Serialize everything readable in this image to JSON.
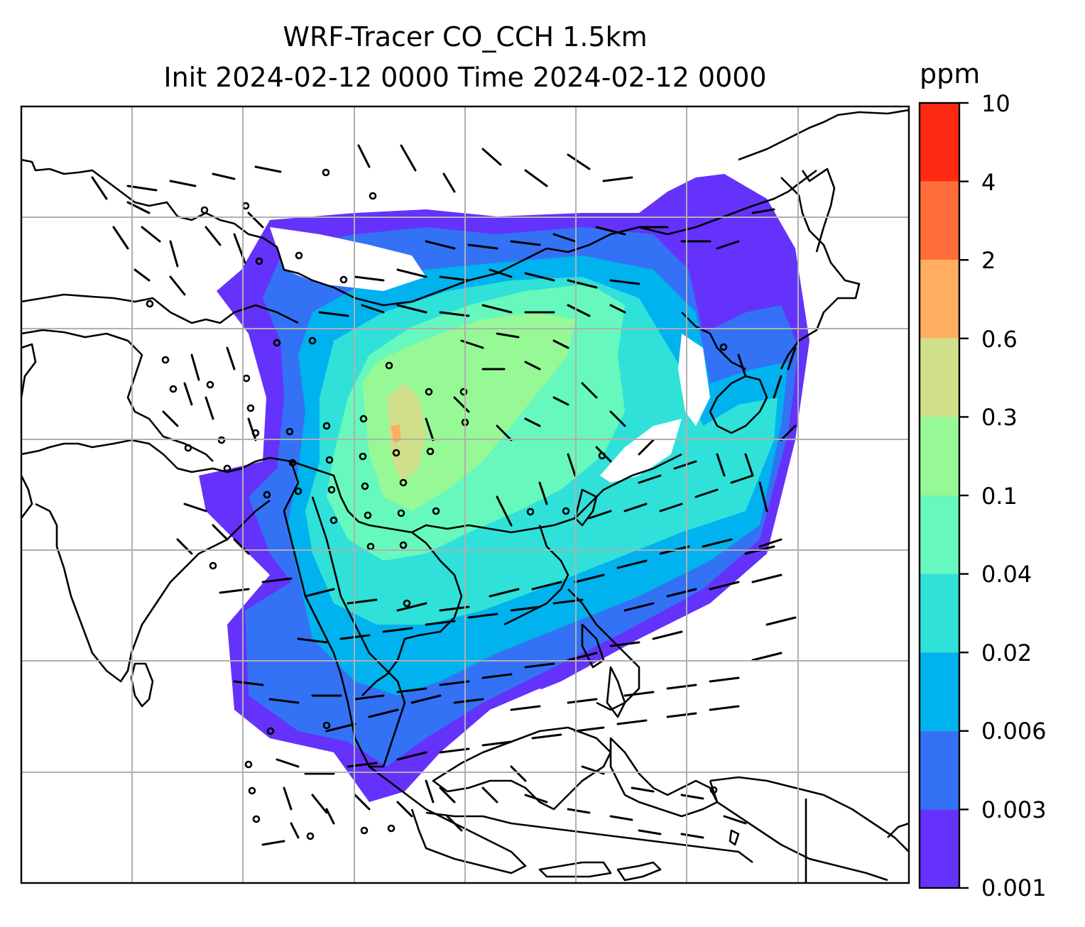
{
  "title": {
    "line1": "WRF-Tracer CO_CCH 1.5km",
    "line2": "Init 2024-02-12 0000 Time 2024-02-12 0000"
  },
  "colorbar": {
    "unit": "ppm",
    "ticks": [
      "10",
      "4",
      "2",
      "0.6",
      "0.3",
      "0.1",
      "0.04",
      "0.02",
      "0.006",
      "0.003",
      "0.001"
    ],
    "colors": [
      "#ff2a14",
      "#ff6e3a",
      "#ffad60",
      "#d0e08a",
      "#96f996",
      "#66f8bc",
      "#2fe1d8",
      "#00b2ee",
      "#3372f5",
      "#6432fb"
    ]
  },
  "map": {
    "gridlines": true,
    "colors": {
      "purple": "#6432fb",
      "blue": "#3372f5",
      "cyan": "#00b2ee",
      "teal": "#2fe1d8",
      "aqua": "#66f8bc",
      "green": "#96f996",
      "yellow": "#d0e08a",
      "orange": "#ffad60"
    }
  }
}
